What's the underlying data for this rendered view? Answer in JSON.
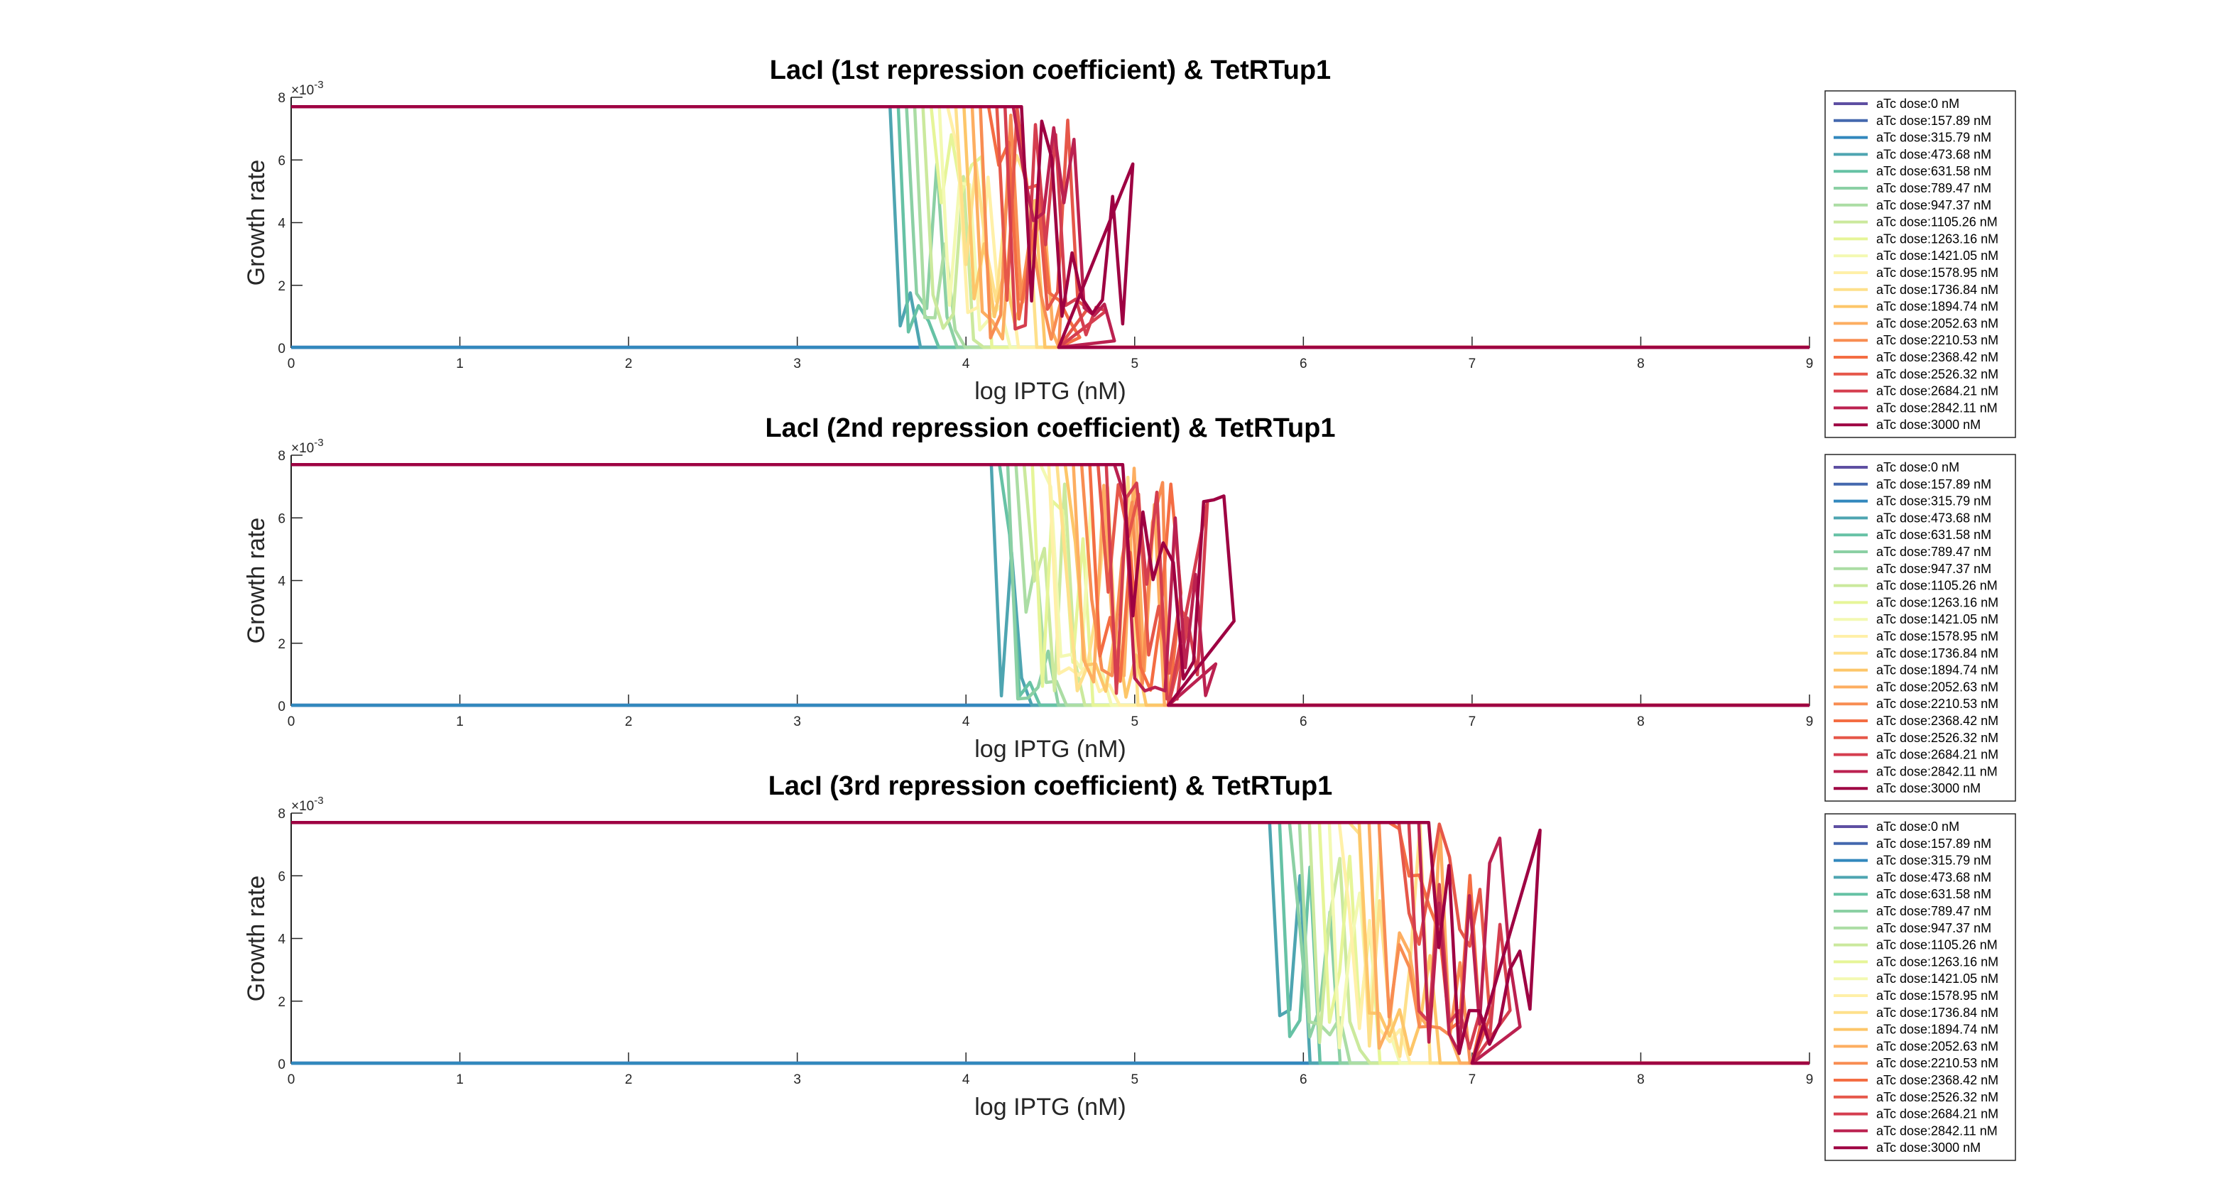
{
  "chart_data": [
    {
      "type": "line",
      "title": "LacI (1st repression coefficient) & TetRTup1",
      "xlabel": "log IPTG (nM)",
      "ylabel": "Growth rate",
      "y_exponent_label": "×10",
      "y_exponent_power": "-3",
      "xlim": [
        0,
        9
      ],
      "ylim": [
        0,
        8
      ],
      "xticks": [
        "0",
        "1",
        "2",
        "3",
        "4",
        "5",
        "6",
        "7",
        "8",
        "9"
      ],
      "yticks": [
        "0",
        "2",
        "4",
        "6",
        "8"
      ],
      "plateau": 7.7,
      "transition_start": 3.55,
      "transition_end": 4.5,
      "drop_end": 4.55,
      "grid": false,
      "legend_position": "right"
    },
    {
      "type": "line",
      "title": "LacI (2nd repression coefficient) & TetRTup1",
      "xlabel": "log IPTG (nM)",
      "ylabel": "Growth rate",
      "y_exponent_label": "×10",
      "y_exponent_power": "-3",
      "xlim": [
        0,
        9
      ],
      "ylim": [
        0,
        8
      ],
      "xticks": [
        "0",
        "1",
        "2",
        "3",
        "4",
        "5",
        "6",
        "7",
        "8",
        "9"
      ],
      "yticks": [
        "0",
        "2",
        "4",
        "6",
        "8"
      ],
      "plateau": 7.7,
      "transition_start": 4.15,
      "transition_end": 5.1,
      "drop_end": 5.2,
      "grid": false,
      "legend_position": "right"
    },
    {
      "type": "line",
      "title": "LacI (3rd repression coefficient) & TetRTup1",
      "xlabel": "log IPTG (nM)",
      "ylabel": "Growth rate",
      "y_exponent_label": "×10",
      "y_exponent_power": "-3",
      "xlim": [
        0,
        9
      ],
      "ylim": [
        0,
        8
      ],
      "xticks": [
        "0",
        "1",
        "2",
        "3",
        "4",
        "5",
        "6",
        "7",
        "8",
        "9"
      ],
      "yticks": [
        "0",
        "2",
        "4",
        "6",
        "8"
      ],
      "plateau": 7.7,
      "transition_start": 5.8,
      "transition_end": 6.95,
      "drop_end": 7.0,
      "grid": false,
      "legend_position": "right"
    }
  ],
  "series": [
    {
      "name": "aTc dose:0 nM",
      "color": "#5e4fa2"
    },
    {
      "name": "aTc dose:157.89 nM",
      "color": "#4468ae"
    },
    {
      "name": "aTc dose:315.79 nM",
      "color": "#3288bd"
    },
    {
      "name": "aTc dose:473.68 nM",
      "color": "#4ea5b1"
    },
    {
      "name": "aTc dose:631.58 nM",
      "color": "#66c2a5"
    },
    {
      "name": "aTc dose:789.47 nM",
      "color": "#8bd0a4"
    },
    {
      "name": "aTc dose:947.37 nM",
      "color": "#abdda4"
    },
    {
      "name": "aTc dose:1105.26 nM",
      "color": "#cbe99d"
    },
    {
      "name": "aTc dose:1263.16 nM",
      "color": "#e6f598"
    },
    {
      "name": "aTc dose:1421.05 nM",
      "color": "#f3f9b2"
    },
    {
      "name": "aTc dose:1578.95 nM",
      "color": "#fff0a8"
    },
    {
      "name": "aTc dose:1736.84 nM",
      "color": "#fee08b"
    },
    {
      "name": "aTc dose:1894.74 nM",
      "color": "#fdc669"
    },
    {
      "name": "aTc dose:2052.63 nM",
      "color": "#fdae61"
    },
    {
      "name": "aTc dose:2210.53 nM",
      "color": "#f88d52"
    },
    {
      "name": "aTc dose:2368.42 nM",
      "color": "#f46d43"
    },
    {
      "name": "aTc dose:2526.32 nM",
      "color": "#e65749"
    },
    {
      "name": "aTc dose:2684.21 nM",
      "color": "#d53e4f"
    },
    {
      "name": "aTc dose:2842.11 nM",
      "color": "#bb2150"
    },
    {
      "name": "aTc dose:3000 nM",
      "color": "#9e0142"
    }
  ]
}
